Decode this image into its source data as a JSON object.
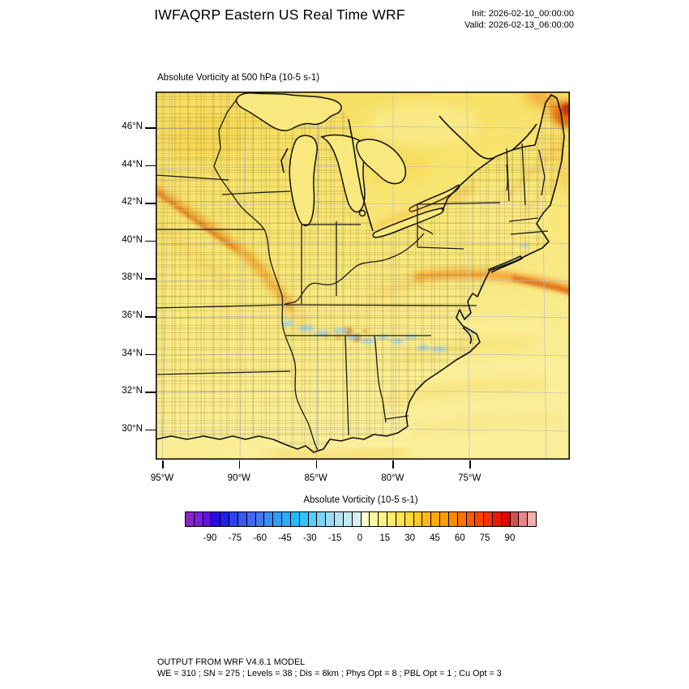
{
  "header": {
    "title": "IWFAQRP Eastern US Real Time WRF",
    "init": "Init: 2026-02-10_00:00:00",
    "valid": "Valid: 2026-02-13_06:00:00"
  },
  "plot": {
    "title": "Absolute Vorticity at 500 hPa   (10-5 s-1)",
    "lat_ticks": [
      "46°N",
      "44°N",
      "42°N",
      "40°N",
      "38°N",
      "36°N",
      "34°N",
      "32°N",
      "30°N"
    ],
    "lon_ticks": [
      "95°W",
      "90°W",
      "85°W",
      "80°W",
      "75°W"
    ]
  },
  "colorbar": {
    "label": "Absolute Vorticity  (10-5 s-1)",
    "tick_labels": [
      "-90",
      "-75",
      "-60",
      "-45",
      "-30",
      "-15",
      "0",
      "15",
      "30",
      "45",
      "60",
      "75",
      "90"
    ],
    "colors": [
      "#8B26C9",
      "#7A1EDC",
      "#5A14E6",
      "#2B0BE8",
      "#1F1FF0",
      "#2E42F5",
      "#3A57F6",
      "#4568F4",
      "#4377F3",
      "#3D8BF6",
      "#359CF8",
      "#2CACFA",
      "#22BCFC",
      "#32C5FB",
      "#55CDF8",
      "#7AD5F5",
      "#9ADDF3",
      "#B3E3F2",
      "#C5E9F3",
      "#D9EFF6",
      "#FFFFC9",
      "#FFF9A6",
      "#FFF387",
      "#FFEC66",
      "#FFE34C",
      "#FFD83A",
      "#FFC928",
      "#FFB917",
      "#FFAA08",
      "#FF9C00",
      "#FF8A00",
      "#FF7300",
      "#FF5A00",
      "#FF4500",
      "#FA3000",
      "#EE1800",
      "#DC0800",
      "#D05050",
      "#E68585",
      "#F5AEAE"
    ]
  },
  "map": {
    "base_fill_top": "#F6DC5F",
    "base_fill_bottom": "#FAEE9A",
    "positive_band_color": "#F2A62E",
    "strong_positive_color": "#C83808",
    "negative_patch_color": "#9FD2EE",
    "features": [
      {
        "name": "positive-vorticity-band-upper-midwest",
        "value_approx": "30-45"
      },
      {
        "name": "positive-vorticity-band-atlantic-38N",
        "value_approx": "30-60"
      },
      {
        "name": "strong-positive-maximum-northeast-corner",
        "value_approx": "75-90"
      },
      {
        "name": "negative-vorticity-patches-appalachians",
        "value_approx": "-15"
      }
    ]
  },
  "chart_data": {
    "type": "heatmap",
    "title": "Absolute Vorticity at 500 hPa   (10-5 s-1)",
    "colorbar_label": "Absolute Vorticity  (10-5 s-1)",
    "colorbar_ticks": [
      -90,
      -75,
      -60,
      -45,
      -30,
      -15,
      0,
      15,
      30,
      45,
      60,
      75,
      90
    ],
    "colorbar_range": [
      -100,
      100
    ],
    "x_axis_ticks": [
      "95°W",
      "90°W",
      "85°W",
      "80°W",
      "75°W"
    ],
    "y_axis_ticks": [
      "46°N",
      "44°N",
      "42°N",
      "40°N",
      "38°N",
      "36°N",
      "34°N",
      "32°N",
      "30°N"
    ],
    "field_summary": "Mostly 5-20 over domain; orange bands ~30-45 across Iowa-Illinois and off the Mid-Atlantic coast near 38N; maximum ~75-90 at far northeast corner; small negative (-15) pockets along TN/NC/VA Appalachians"
  },
  "footer": {
    "line1": "OUTPUT FROM WRF V4.6.1 MODEL",
    "line2": "WE = 310 ; SN = 275 ; Levels = 38 ; Dis = 8km ; Phys Opt = 8 ; PBL Opt = 1 ; Cu Opt = 3"
  }
}
